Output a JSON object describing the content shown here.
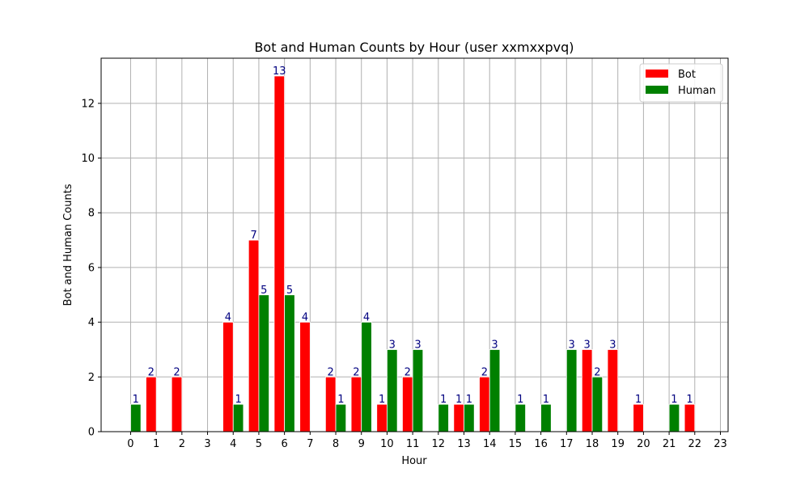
{
  "chart_data": {
    "type": "bar",
    "title": "Bot and Human Counts by Hour (user xxmxxpvq)",
    "xlabel": "Hour",
    "ylabel": "Bot and Human Counts",
    "categories": [
      "0",
      "1",
      "2",
      "3",
      "4",
      "5",
      "6",
      "7",
      "8",
      "9",
      "10",
      "11",
      "12",
      "13",
      "14",
      "15",
      "16",
      "17",
      "18",
      "19",
      "20",
      "21",
      "22",
      "23"
    ],
    "series": [
      {
        "name": "Bot",
        "color": "#ff0000",
        "x": [
          1,
          2,
          4,
          5,
          6,
          7,
          8,
          9,
          10,
          11,
          13,
          14,
          18,
          19,
          20,
          22
        ],
        "values": [
          2,
          2,
          4,
          7,
          13,
          4,
          2,
          2,
          1,
          2,
          1,
          2,
          3,
          3,
          1,
          1
        ]
      },
      {
        "name": "Human",
        "color": "#008000",
        "x": [
          0,
          4,
          5,
          6,
          8,
          9,
          10,
          11,
          12,
          13,
          14,
          15,
          16,
          17,
          18,
          21
        ],
        "values": [
          1,
          1,
          5,
          5,
          1,
          4,
          3,
          3,
          1,
          1,
          3,
          1,
          1,
          3,
          2,
          1
        ]
      }
    ],
    "yticks": [
      0,
      2,
      4,
      6,
      8,
      10,
      12
    ],
    "ylim": [
      0,
      13.65
    ],
    "xlim": [
      -1.15,
      23.3
    ],
    "grid": true,
    "legend_position": "top-right",
    "data_label_color": "#000080"
  }
}
